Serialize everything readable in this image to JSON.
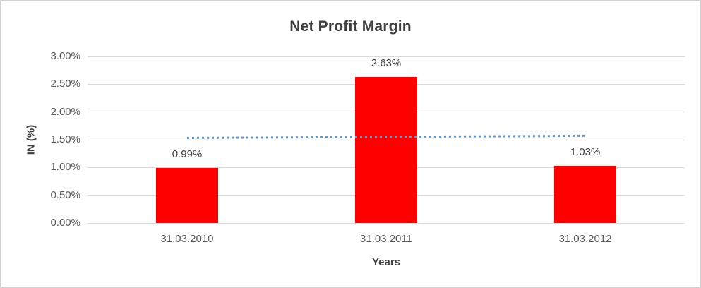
{
  "window": {
    "background": "#ffffff",
    "border_color": "#d0d0d0"
  },
  "chart_data": {
    "type": "bar",
    "title": "Net Profit Margin",
    "xlabel": "Years",
    "ylabel": "IN (%)",
    "categories": [
      "31.03.2010",
      "31.03.2011",
      "31.03.2012"
    ],
    "values": [
      0.99,
      2.63,
      1.03
    ],
    "data_labels": [
      "0.99%",
      "2.63%",
      "1.03%"
    ],
    "y_ticks": [
      "0.00%",
      "0.50%",
      "1.00%",
      "1.50%",
      "2.00%",
      "2.50%",
      "3.00%"
    ],
    "y_tick_values": [
      0.0,
      0.5,
      1.0,
      1.5,
      2.0,
      2.5,
      3.0
    ],
    "ylim": [
      0,
      3.0
    ],
    "grid": true,
    "legend": "none",
    "bar_color": "#ff0000",
    "gridline_color": "#d9d9d9",
    "trendline": {
      "type": "linear",
      "style": "dotted",
      "color": "#5b9bd5",
      "start_value": 1.53,
      "end_value": 1.57
    }
  }
}
